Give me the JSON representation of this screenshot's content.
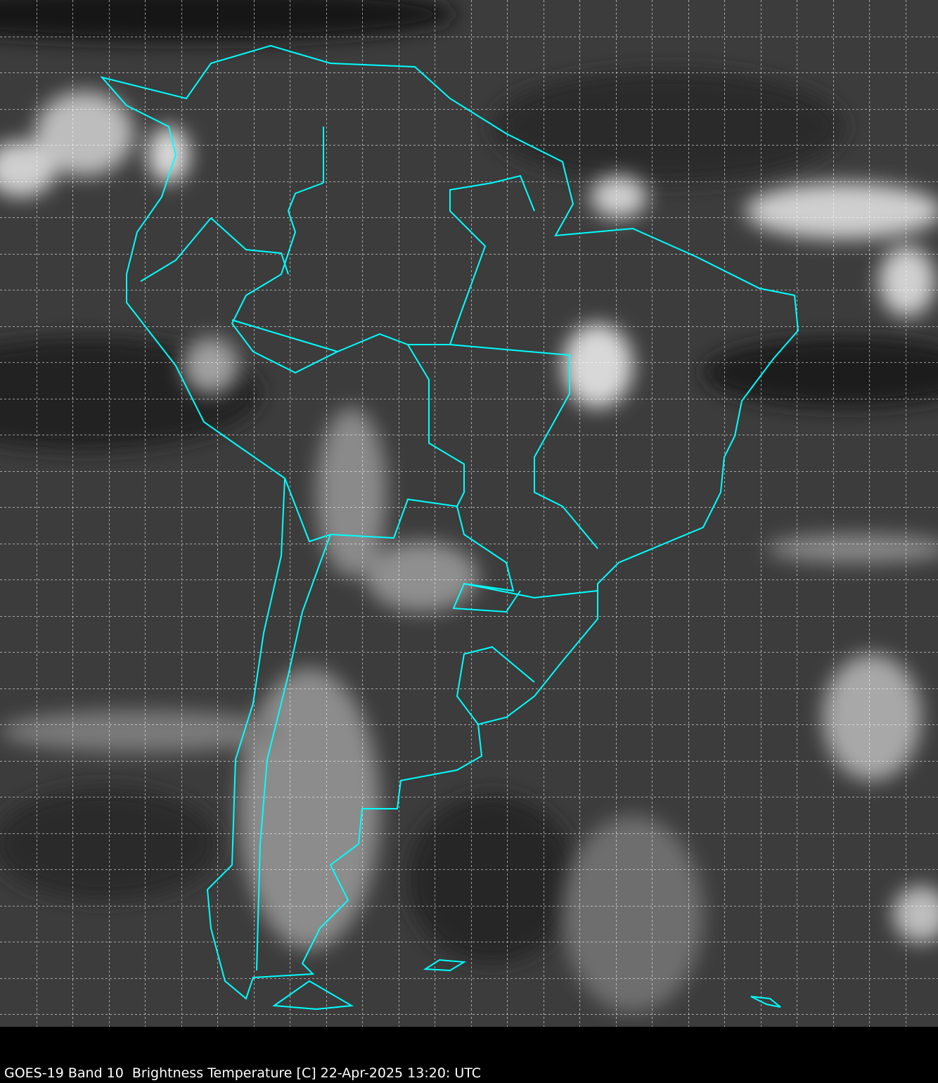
{
  "caption": "GOES-19 Band 10  Brightness Temperature [C] 22-Apr-2025 13:20: UTC",
  "map": {
    "type": "satellite infrared brightness temperature image",
    "region": "South America",
    "coastline_color": "#00ffff",
    "grid_color": "#ffffff",
    "grid_style": "dashed",
    "background_color": "#3a3a3a",
    "cloud_color": "#e8e8e8"
  }
}
